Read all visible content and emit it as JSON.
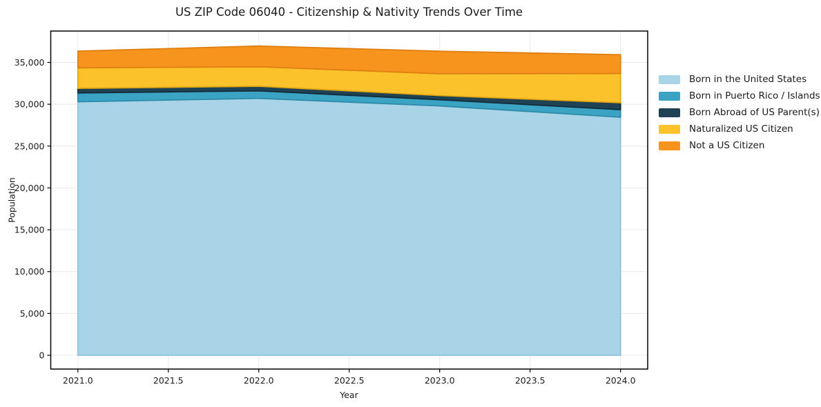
{
  "figure": {
    "background": "#ffffff"
  },
  "style": {
    "grid_color": "#e8e8e8",
    "spine_color": "#000000",
    "tick_color": "#000000",
    "text_color": "#1a1a1a"
  },
  "chart_data": {
    "type": "area",
    "stacked": true,
    "title": "US ZIP Code 06040 - Citizenship & Nativity Trends Over Time",
    "xlabel": "Year",
    "ylabel": "Population",
    "x": [
      2021,
      2022,
      2023,
      2024
    ],
    "series": [
      {
        "name": "Born in the United States",
        "color": "#A9D4E8",
        "edge": "#8FC2DC",
        "values": [
          30300,
          30700,
          29800,
          28450
        ]
      },
      {
        "name": "Born in Puerto Rico / Islands",
        "color": "#3BA3C3",
        "edge": "#2E8BA8",
        "values": [
          1050,
          900,
          740,
          900
        ]
      },
      {
        "name": "Born Abroad of US Parent(s)",
        "color": "#1F4254",
        "edge": "#132C39",
        "values": [
          550,
          550,
          500,
          830
        ]
      },
      {
        "name": "Naturalized US Citizen",
        "color": "#FCC22C",
        "edge": "#E2A714",
        "values": [
          2450,
          2330,
          2610,
          3490
        ]
      },
      {
        "name": "Not a US Citizen",
        "color": "#F6941E",
        "edge": "#DE7F10",
        "values": [
          2000,
          2480,
          2690,
          2250
        ]
      }
    ],
    "totals": [
      36350,
      36960,
      36340,
      35920
    ],
    "xlim": [
      2020.85,
      2024.15
    ],
    "ylim": [
      -1650,
      38750
    ],
    "xticks": [
      {
        "v": 2021.0,
        "label": "2021.0"
      },
      {
        "v": 2021.5,
        "label": "2021.5"
      },
      {
        "v": 2022.0,
        "label": "2022.0"
      },
      {
        "v": 2022.5,
        "label": "2022.5"
      },
      {
        "v": 2023.0,
        "label": "2023.0"
      },
      {
        "v": 2023.5,
        "label": "2023.5"
      },
      {
        "v": 2024.0,
        "label": "2024.0"
      }
    ],
    "yticks": [
      {
        "v": 0,
        "label": "0"
      },
      {
        "v": 5000,
        "label": "5,000"
      },
      {
        "v": 10000,
        "label": "10,000"
      },
      {
        "v": 15000,
        "label": "15,000"
      },
      {
        "v": 20000,
        "label": "20,000"
      },
      {
        "v": 25000,
        "label": "25,000"
      },
      {
        "v": 30000,
        "label": "30,000"
      },
      {
        "v": 35000,
        "label": "35,000"
      }
    ],
    "grid": true,
    "legend_position": "right-outside"
  }
}
